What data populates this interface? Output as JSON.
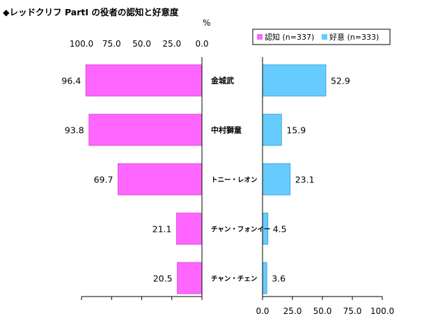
{
  "chart_data": {
    "type": "bar",
    "title": "◆レッドクリフ PartⅠ の役者の認知と好意度",
    "unit": "%",
    "categories": [
      "金城武",
      "中村獅童",
      "トニー・レオン",
      "チャン・フォンイー",
      "チャン・チェン"
    ],
    "series": [
      {
        "name": "認知 (n=337)",
        "values": [
          96.4,
          93.8,
          69.7,
          21.1,
          20.5
        ],
        "color": "#ff66ff"
      },
      {
        "name": "好意 (n=333)",
        "values": [
          52.9,
          15.9,
          23.1,
          4.5,
          3.6
        ],
        "color": "#66ccff"
      }
    ],
    "left_ticks": [
      "100.0",
      "75.0",
      "50.0",
      "25.0",
      "0.0"
    ],
    "right_ticks": [
      "0.0",
      "25.0",
      "50.0",
      "75.0",
      "100.0"
    ],
    "value_labels_left": [
      "96.4",
      "93.8",
      "69.7",
      "21.1",
      "20.5"
    ],
    "value_labels_right": [
      "52.9",
      "15.9",
      "23.1",
      "4.5",
      "3.6"
    ],
    "xlim": [
      0,
      100
    ],
    "legend_position": "top-right",
    "grid": false
  }
}
